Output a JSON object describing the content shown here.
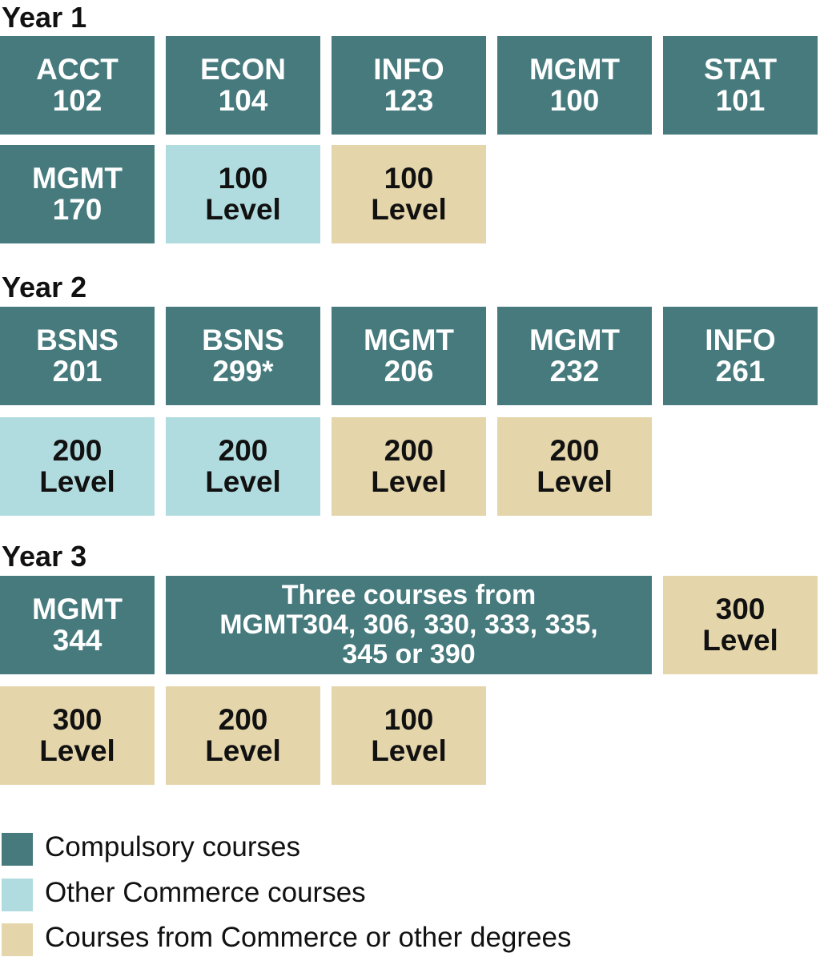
{
  "years": [
    {
      "title": "Year 1",
      "boxes": [
        {
          "text": "ACCT\n102",
          "category": "compulsory"
        },
        {
          "text": "ECON\n104",
          "category": "compulsory"
        },
        {
          "text": "INFO\n123",
          "category": "compulsory"
        },
        {
          "text": "MGMT\n100",
          "category": "compulsory"
        },
        {
          "text": "STAT\n101",
          "category": "compulsory"
        },
        {
          "text": "MGMT\n170",
          "category": "compulsory"
        },
        {
          "text": "100\nLevel",
          "category": "other"
        },
        {
          "text": "100\nLevel",
          "category": "degree"
        }
      ]
    },
    {
      "title": "Year 2",
      "boxes": [
        {
          "text": "BSNS\n201",
          "category": "compulsory"
        },
        {
          "text": "BSNS\n299*",
          "category": "compulsory"
        },
        {
          "text": "MGMT\n206",
          "category": "compulsory"
        },
        {
          "text": "MGMT\n232",
          "category": "compulsory"
        },
        {
          "text": "INFO\n261",
          "category": "compulsory"
        },
        {
          "text": "200\nLevel",
          "category": "other"
        },
        {
          "text": "200\nLevel",
          "category": "other"
        },
        {
          "text": "200\nLevel",
          "category": "degree"
        },
        {
          "text": "200\nLevel",
          "category": "degree"
        }
      ]
    },
    {
      "title": "Year 3",
      "boxes": [
        {
          "text": "MGMT\n344",
          "category": "compulsory"
        },
        {
          "text": "Three courses from\nMGMT304, 306, 330, 333, 335,\n345 or 390",
          "category": "compulsory"
        },
        {
          "text": "300\nLevel",
          "category": "degree"
        },
        {
          "text": "300\nLevel",
          "category": "degree"
        },
        {
          "text": "200\nLevel",
          "category": "degree"
        },
        {
          "text": "100\nLevel",
          "category": "degree"
        }
      ]
    }
  ],
  "legend": [
    {
      "label": "Compulsory courses",
      "category": "compulsory"
    },
    {
      "label": "Other Commerce courses",
      "category": "other"
    },
    {
      "label": "Courses from Commerce or other degrees",
      "category": "degree"
    }
  ],
  "colors": {
    "compulsory": "#467a7d",
    "other": "#b1dcdf",
    "degree": "#e4d5ab"
  }
}
